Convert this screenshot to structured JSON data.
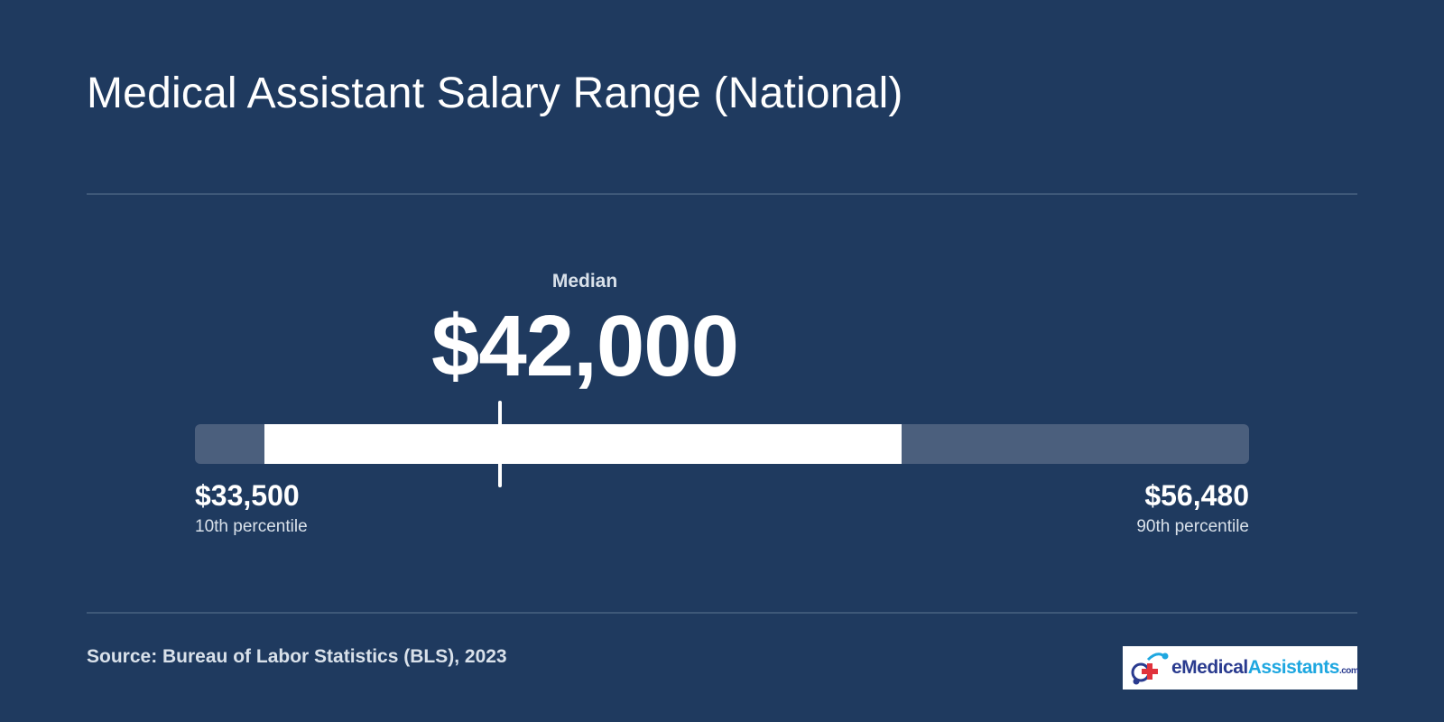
{
  "title": "Medical Assistant Salary Range (National)",
  "chart_data": {
    "type": "range",
    "min": 33500,
    "max": 56480,
    "median": 42000,
    "scale_min": 31000,
    "scale_max": 69000,
    "min_label": "$33,500",
    "min_caption": "10th percentile",
    "max_label": "$56,480",
    "max_caption": "90th percentile",
    "median_label": "$42,000",
    "median_caption": "Median"
  },
  "source": "Source: Bureau of Labor Statistics (BLS), 2023",
  "logo": {
    "part1": "eMedical",
    "part2": "Assistants",
    "part3": ".com"
  },
  "colors": {
    "background": "#1f3a5f",
    "track": "#4b5f7d",
    "range": "#ffffff",
    "logo_blue": "#2a3b8f",
    "logo_cyan": "#1ea7e0",
    "logo_red": "#e0323c"
  }
}
